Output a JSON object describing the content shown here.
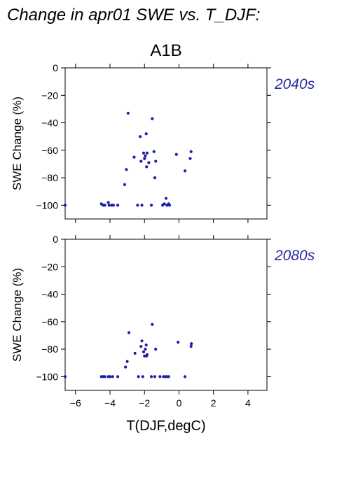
{
  "figure": {
    "title": "Change in apr01 SWE vs. T_DJF:",
    "scenario": "A1B",
    "xlabel": "T(DJF,degC)"
  },
  "colors": {
    "points": "#1c1ca8",
    "period_text": "#2a2aa0"
  },
  "chart_data": [
    {
      "type": "scatter",
      "period_label": "2040s",
      "ylabel": "SWE Change (%)",
      "xlim": [
        -6.6,
        5.1
      ],
      "ylim": [
        -110,
        0
      ],
      "x_ticks": [
        -6,
        -4,
        -2,
        0,
        2,
        4
      ],
      "y_ticks": [
        0,
        -20,
        -40,
        -60,
        -80,
        -100
      ],
      "y_tick_labels": [
        "0",
        "−20",
        "−40",
        "−60",
        "−80",
        "−100"
      ],
      "points": [
        {
          "x": -6.6,
          "y": -100
        },
        {
          "x": -4.5,
          "y": -99
        },
        {
          "x": -4.4,
          "y": -100
        },
        {
          "x": -4.3,
          "y": -100
        },
        {
          "x": -4.1,
          "y": -98
        },
        {
          "x": -4.05,
          "y": -100
        },
        {
          "x": -3.9,
          "y": -100
        },
        {
          "x": -3.8,
          "y": -100
        },
        {
          "x": -3.55,
          "y": -100
        },
        {
          "x": -3.15,
          "y": -85
        },
        {
          "x": -3.05,
          "y": -74
        },
        {
          "x": -2.95,
          "y": -33
        },
        {
          "x": -2.6,
          "y": -65
        },
        {
          "x": -2.4,
          "y": -100
        },
        {
          "x": -2.25,
          "y": -50
        },
        {
          "x": -2.2,
          "y": -68
        },
        {
          "x": -2.15,
          "y": -100
        },
        {
          "x": -2.05,
          "y": -62
        },
        {
          "x": -2.0,
          "y": -66
        },
        {
          "x": -1.95,
          "y": -64
        },
        {
          "x": -1.9,
          "y": -48
        },
        {
          "x": -1.88,
          "y": -72
        },
        {
          "x": -1.85,
          "y": -62
        },
        {
          "x": -1.75,
          "y": -69
        },
        {
          "x": -1.6,
          "y": -100
        },
        {
          "x": -1.55,
          "y": -37
        },
        {
          "x": -1.45,
          "y": -61
        },
        {
          "x": -1.4,
          "y": -80
        },
        {
          "x": -1.35,
          "y": -68
        },
        {
          "x": -0.95,
          "y": -100
        },
        {
          "x": -0.85,
          "y": -99
        },
        {
          "x": -0.75,
          "y": -95
        },
        {
          "x": -0.7,
          "y": -100
        },
        {
          "x": -0.6,
          "y": -99
        },
        {
          "x": -0.55,
          "y": -100
        },
        {
          "x": -0.15,
          "y": -63
        },
        {
          "x": 0.35,
          "y": -75
        },
        {
          "x": 0.65,
          "y": -66
        },
        {
          "x": 0.7,
          "y": -61
        }
      ]
    },
    {
      "type": "scatter",
      "period_label": "2080s",
      "ylabel": "SWE Change (%)",
      "xlim": [
        -6.6,
        5.1
      ],
      "ylim": [
        -110,
        0
      ],
      "x_ticks": [
        -6,
        -4,
        -2,
        0,
        2,
        4
      ],
      "x_tick_labels": [
        "−6",
        "−4",
        "−2",
        "0",
        "2",
        "4"
      ],
      "y_ticks": [
        0,
        -20,
        -40,
        -60,
        -80,
        -100
      ],
      "y_tick_labels": [
        "0",
        "−20",
        "−40",
        "−60",
        "−80",
        "−100"
      ],
      "points": [
        {
          "x": -6.6,
          "y": -100
        },
        {
          "x": -4.5,
          "y": -100
        },
        {
          "x": -4.4,
          "y": -100
        },
        {
          "x": -4.3,
          "y": -100
        },
        {
          "x": -4.1,
          "y": -100
        },
        {
          "x": -4.0,
          "y": -100
        },
        {
          "x": -3.85,
          "y": -100
        },
        {
          "x": -3.55,
          "y": -100
        },
        {
          "x": -3.1,
          "y": -93
        },
        {
          "x": -3.0,
          "y": -89
        },
        {
          "x": -2.9,
          "y": -68
        },
        {
          "x": -2.55,
          "y": -83
        },
        {
          "x": -2.35,
          "y": -100
        },
        {
          "x": -2.2,
          "y": -78
        },
        {
          "x": -2.15,
          "y": -74
        },
        {
          "x": -2.1,
          "y": -100
        },
        {
          "x": -2.05,
          "y": -82
        },
        {
          "x": -2.0,
          "y": -85
        },
        {
          "x": -1.95,
          "y": -80
        },
        {
          "x": -1.9,
          "y": -77
        },
        {
          "x": -1.88,
          "y": -85
        },
        {
          "x": -1.85,
          "y": -84
        },
        {
          "x": -1.6,
          "y": -100
        },
        {
          "x": -1.55,
          "y": -62
        },
        {
          "x": -1.4,
          "y": -100
        },
        {
          "x": -1.35,
          "y": -80
        },
        {
          "x": -1.1,
          "y": -100
        },
        {
          "x": -0.9,
          "y": -100
        },
        {
          "x": -0.8,
          "y": -100
        },
        {
          "x": -0.7,
          "y": -100
        },
        {
          "x": -0.6,
          "y": -100
        },
        {
          "x": -0.05,
          "y": -75
        },
        {
          "x": 0.35,
          "y": -100
        },
        {
          "x": 0.7,
          "y": -78
        },
        {
          "x": 0.72,
          "y": -76
        }
      ]
    }
  ]
}
